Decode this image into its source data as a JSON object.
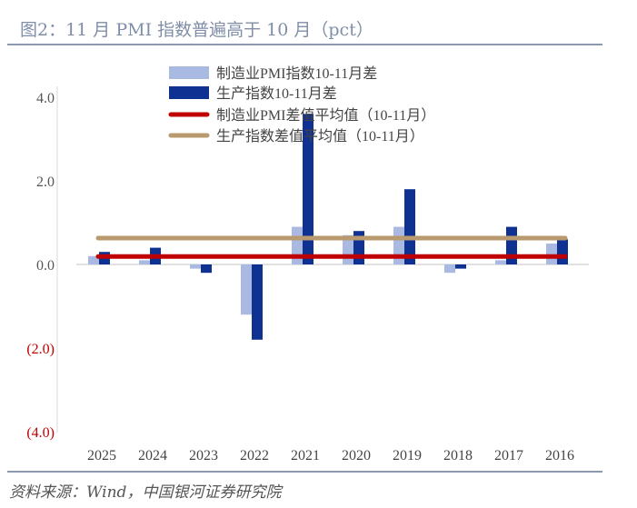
{
  "title": "图2：11 月 PMI 指数普遍高于 10 月（pct）",
  "source": "资料来源：Wind，中国银河证券研究院",
  "chart_data": {
    "type": "bar",
    "title": "图2：11 月 PMI 指数普遍高于 10 月（pct）",
    "categories": [
      "2025",
      "2024",
      "2023",
      "2022",
      "2021",
      "2020",
      "2019",
      "2018",
      "2017",
      "2016"
    ],
    "series": [
      {
        "name": "制造业PMI指数10-11月差",
        "kind": "bar",
        "color": "#a9b9e2",
        "values": [
          0.2,
          0.1,
          -0.1,
          -1.2,
          0.9,
          0.7,
          0.9,
          -0.2,
          0.1,
          0.5
        ]
      },
      {
        "name": "生产指数10-11月差",
        "kind": "bar",
        "color": "#0e3192",
        "values": [
          0.3,
          0.4,
          -0.2,
          -1.8,
          3.6,
          0.8,
          1.8,
          -0.1,
          0.9,
          0.6
        ]
      },
      {
        "name": "制造业PMI差值平均值（10-11月）",
        "kind": "line",
        "color": "#c00000",
        "value": 0.19
      },
      {
        "name": "生产指数差值平均值（10-11月）",
        "kind": "line",
        "color": "#b89a6e",
        "value": 0.63
      }
    ],
    "ylim": [
      -4.0,
      4.0
    ],
    "yticks": [
      {
        "value": 4.0,
        "label": "4.0",
        "color": "#555555"
      },
      {
        "value": 2.0,
        "label": "2.0",
        "color": "#555555"
      },
      {
        "value": 0.0,
        "label": "0.0",
        "color": "#555555"
      },
      {
        "value": -2.0,
        "label": "(2.0)",
        "color": "#c00000"
      },
      {
        "value": -4.0,
        "label": "(4.0)",
        "color": "#c00000"
      }
    ],
    "xlabel": "",
    "ylabel": "",
    "grid": false,
    "legend": "top-center"
  }
}
